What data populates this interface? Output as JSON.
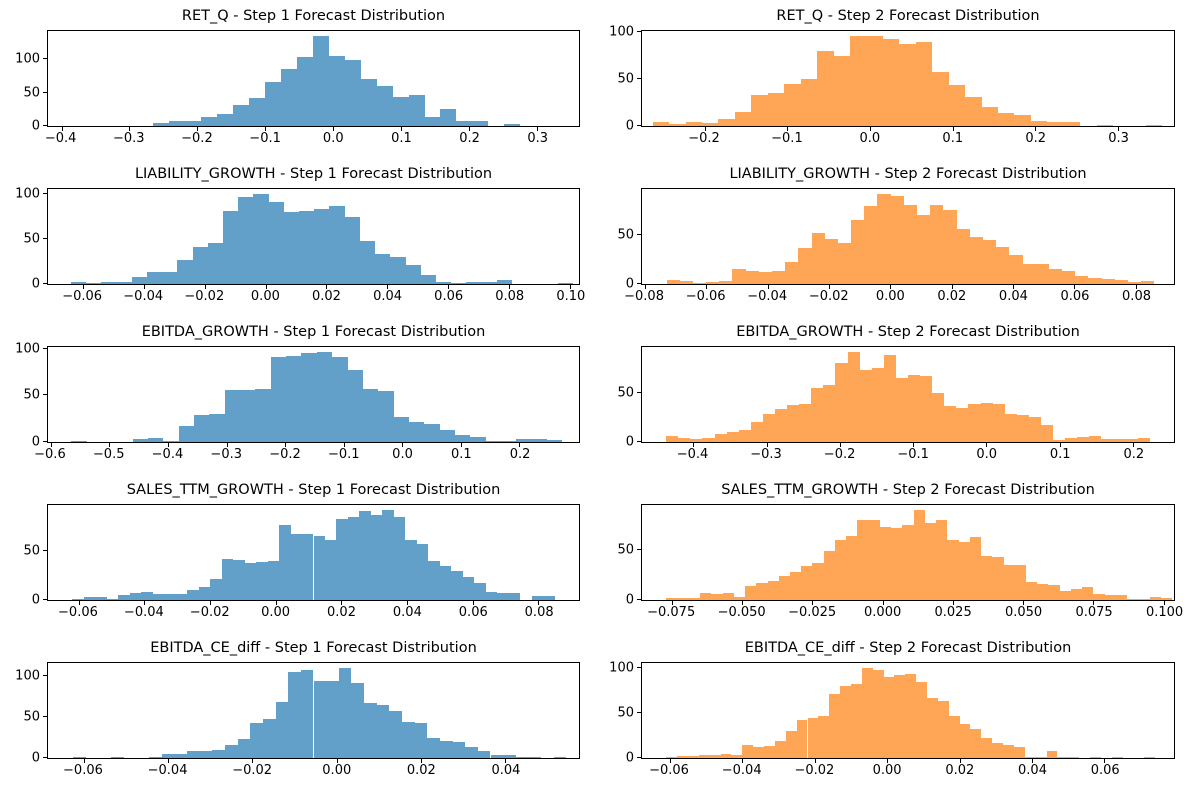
{
  "figure": {
    "kind": "matplotlib-histogram-grid",
    "rows": 5,
    "cols": 2,
    "background": "#ffffff",
    "axis_color": "#000000",
    "step1_color": "#62a0ca",
    "step2_color": "#ffa556"
  },
  "chart_data": [
    {
      "type": "bar",
      "subtype": "histogram",
      "title": "RET_Q - Step 1 Forecast Distribution",
      "series_color": "#62a0ca",
      "bin_start": -0.265,
      "bin_width": 0.0235,
      "counts": [
        4,
        8,
        8,
        13,
        18,
        32,
        42,
        65,
        85,
        103,
        135,
        105,
        98,
        70,
        60,
        43,
        46,
        14,
        25,
        8,
        8,
        0,
        3
      ],
      "xlim": [
        -0.42,
        0.362
      ],
      "ylim": [
        0,
        141.8
      ],
      "xticks": [
        -0.4,
        -0.3,
        -0.2,
        -0.1,
        0.0,
        0.1,
        0.2,
        0.3
      ],
      "xtick_labels": [
        "−0.4",
        "−0.3",
        "−0.2",
        "−0.1",
        "0.0",
        "0.1",
        "0.2",
        "0.3"
      ],
      "yticks": [
        0,
        50,
        100
      ],
      "ytick_labels": [
        "0",
        "50",
        "100"
      ],
      "grid": false,
      "legend": null
    },
    {
      "type": "bar",
      "subtype": "histogram",
      "title": "RET_Q - Step 2 Forecast Distribution",
      "series_color": "#ffa556",
      "bin_start": -0.263,
      "bin_width": 0.0199,
      "counts": [
        4,
        2,
        4,
        3,
        7,
        15,
        33,
        35,
        45,
        50,
        80,
        74,
        96,
        96,
        92,
        87,
        89,
        57,
        44,
        31,
        20,
        14,
        12,
        5,
        4,
        4,
        0,
        1,
        0,
        0,
        1
      ],
      "xlim": [
        -0.276,
        0.368
      ],
      "ylim": [
        0,
        100.8
      ],
      "xticks": [
        -0.2,
        -0.1,
        0.0,
        0.1,
        0.2,
        0.3
      ],
      "xtick_labels": [
        "−0.2",
        "−0.1",
        "0.0",
        "0.1",
        "0.2",
        "0.3"
      ],
      "yticks": [
        0,
        50,
        100
      ],
      "ytick_labels": [
        "0",
        "50",
        "100"
      ],
      "grid": false,
      "legend": null
    },
    {
      "type": "bar",
      "subtype": "histogram",
      "title": "LIABILITY_GROWTH - Step 1 Forecast Distribution",
      "series_color": "#62a0ca",
      "bin_start": -0.064,
      "bin_width": 0.005,
      "counts": [
        2,
        1,
        2,
        2,
        8,
        13,
        13,
        27,
        41,
        46,
        81,
        97,
        101,
        92,
        80,
        81,
        84,
        87,
        75,
        48,
        33,
        30,
        21,
        10,
        2,
        1,
        2,
        2,
        5,
        0,
        0,
        0,
        1
      ],
      "xlim": [
        -0.0715,
        0.103
      ],
      "ylim": [
        0,
        106.1
      ],
      "xticks": [
        -0.06,
        -0.04,
        -0.02,
        0.0,
        0.02,
        0.04,
        0.06,
        0.08,
        0.1
      ],
      "xtick_labels": [
        "−0.06",
        "−0.04",
        "−0.02",
        "0.00",
        "0.02",
        "0.04",
        "0.06",
        "0.08",
        "0.10"
      ],
      "yticks": [
        0,
        50,
        100
      ],
      "ytick_labels": [
        "0",
        "50",
        "100"
      ],
      "grid": false,
      "legend": null
    },
    {
      "type": "bar",
      "subtype": "histogram",
      "title": "LIABILITY_GROWTH - Step 2 Forecast Distribution",
      "series_color": "#ffa556",
      "bin_start": -0.073,
      "bin_width": 0.0043,
      "counts": [
        4,
        3,
        1,
        2,
        3,
        15,
        13,
        12,
        13,
        22,
        37,
        52,
        46,
        42,
        65,
        79,
        92,
        90,
        80,
        70,
        80,
        75,
        56,
        48,
        45,
        38,
        30,
        20,
        20,
        15,
        13,
        8,
        6,
        5,
        4,
        2,
        3
      ],
      "xlim": [
        -0.081,
        0.0925
      ],
      "ylim": [
        0,
        96.6
      ],
      "xticks": [
        -0.08,
        -0.06,
        -0.04,
        -0.02,
        0.0,
        0.02,
        0.04,
        0.06,
        0.08
      ],
      "xtick_labels": [
        "−0.08",
        "−0.06",
        "−0.04",
        "−0.02",
        "0.00",
        "0.02",
        "0.04",
        "0.06",
        "0.08"
      ],
      "yticks": [
        0,
        50
      ],
      "ytick_labels": [
        "0",
        "50"
      ],
      "grid": false,
      "legend": null
    },
    {
      "type": "bar",
      "subtype": "histogram",
      "title": "EBITDA_GROWTH - Step 1 Forecast Distribution",
      "series_color": "#62a0ca",
      "bin_start": -0.565,
      "bin_width": 0.0262,
      "counts": [
        1,
        0,
        0,
        0,
        3,
        4,
        1,
        17,
        29,
        30,
        56,
        56,
        57,
        91,
        92,
        95,
        97,
        91,
        77,
        57,
        55,
        27,
        21,
        19,
        13,
        8,
        5,
        1,
        1,
        3,
        3,
        2
      ],
      "xlim": [
        -0.605,
        0.302
      ],
      "ylim": [
        0,
        101.9
      ],
      "xticks": [
        -0.6,
        -0.5,
        -0.4,
        -0.3,
        -0.2,
        -0.1,
        0.0,
        0.1,
        0.2
      ],
      "xtick_labels": [
        "−0.6",
        "−0.5",
        "−0.4",
        "−0.3",
        "−0.2",
        "−0.1",
        "0.0",
        "0.1",
        "0.2"
      ],
      "yticks": [
        0,
        50,
        100
      ],
      "ytick_labels": [
        "0",
        "50",
        "100"
      ],
      "grid": false,
      "legend": null
    },
    {
      "type": "bar",
      "subtype": "histogram",
      "title": "EBITDA_GROWTH - Step 2 Forecast Distribution",
      "series_color": "#ffa556",
      "bin_start": -0.437,
      "bin_width": 0.0165,
      "counts": [
        6,
        4,
        3,
        4,
        8,
        10,
        12,
        20,
        28,
        34,
        38,
        39,
        55,
        58,
        80,
        92,
        73,
        75,
        88,
        65,
        68,
        67,
        50,
        37,
        35,
        39,
        40,
        39,
        28,
        27,
        25,
        17,
        2,
        4,
        5,
        6,
        3,
        3,
        3,
        4
      ],
      "xlim": [
        -0.47,
        0.256
      ],
      "ylim": [
        0,
        96.6
      ],
      "xticks": [
        -0.4,
        -0.3,
        -0.2,
        -0.1,
        0.0,
        0.1,
        0.2
      ],
      "xtick_labels": [
        "−0.4",
        "−0.3",
        "−0.2",
        "−0.1",
        "0.0",
        "0.1",
        "0.2"
      ],
      "yticks": [
        0,
        50
      ],
      "ytick_labels": [
        "0",
        "50"
      ],
      "grid": false,
      "legend": null
    },
    {
      "type": "bar",
      "subtype": "histogram",
      "title": "SALES_TTM_GROWTH - Step 1 Forecast Distribution",
      "series_color": "#62a0ca",
      "bin_start": -0.062,
      "bin_width": 0.0035,
      "counts": [
        1,
        3,
        3,
        1,
        5,
        7,
        8,
        6,
        6,
        6,
        10,
        13,
        22,
        42,
        41,
        38,
        39,
        40,
        77,
        68,
        68,
        66,
        62,
        83,
        85,
        92,
        87,
        93,
        85,
        62,
        58,
        40,
        35,
        30,
        24,
        18,
        8,
        7,
        7,
        0,
        4,
        4
      ],
      "xlim": [
        -0.0694,
        0.0924
      ],
      "ylim": [
        0,
        97.7
      ],
      "xticks": [
        -0.06,
        -0.04,
        -0.02,
        0.0,
        0.02,
        0.04,
        0.06,
        0.08
      ],
      "xtick_labels": [
        "−0.06",
        "−0.04",
        "−0.02",
        "0.00",
        "0.02",
        "0.04",
        "0.06",
        "0.08"
      ],
      "yticks": [
        0,
        50
      ],
      "ytick_labels": [
        "0",
        "50"
      ],
      "grid": false,
      "legend": null
    },
    {
      "type": "bar",
      "subtype": "histogram",
      "title": "SALES_TTM_GROWTH - Step 2 Forecast Distribution",
      "series_color": "#ffa556",
      "bin_start": -0.077,
      "bin_width": 0.004,
      "counts": [
        2,
        2,
        2,
        7,
        6,
        7,
        3,
        14,
        17,
        19,
        24,
        28,
        34,
        37,
        49,
        60,
        64,
        80,
        80,
        73,
        72,
        75,
        90,
        77,
        80,
        60,
        58,
        63,
        44,
        43,
        35,
        35,
        18,
        16,
        15,
        9,
        11,
        13,
        6,
        5,
        5,
        1,
        1,
        3,
        2
      ],
      "xlim": [
        -0.0857,
        0.1037
      ],
      "ylim": [
        0,
        94.5
      ],
      "xticks": [
        -0.075,
        -0.05,
        -0.025,
        0.0,
        0.025,
        0.05,
        0.075,
        0.1
      ],
      "xtick_labels": [
        "−0.075",
        "−0.050",
        "−0.025",
        "0.000",
        "0.025",
        "0.050",
        "0.075",
        "0.100"
      ],
      "yticks": [
        0,
        50
      ],
      "ytick_labels": [
        "0",
        "50"
      ],
      "grid": false,
      "legend": null
    },
    {
      "type": "bar",
      "subtype": "histogram",
      "title": "EBITDA_CE_diff - Step 1 Forecast Distribution",
      "series_color": "#62a0ca",
      "bin_start": -0.0625,
      "bin_width": 0.003,
      "counts": [
        1,
        0,
        0,
        1,
        0,
        0,
        1,
        5,
        5,
        8,
        9,
        10,
        16,
        23,
        43,
        48,
        68,
        105,
        107,
        94,
        94,
        110,
        91,
        67,
        65,
        57,
        44,
        42,
        24,
        21,
        19,
        13,
        9,
        4,
        4,
        1,
        1,
        0,
        1
      ],
      "xlim": [
        -0.0685,
        0.0575
      ],
      "ylim": [
        0,
        115.5
      ],
      "xticks": [
        -0.06,
        -0.04,
        -0.02,
        0.0,
        0.02,
        0.04
      ],
      "xtick_labels": [
        "−0.06",
        "−0.04",
        "−0.02",
        "0.00",
        "0.02",
        "0.04"
      ],
      "yticks": [
        0,
        50,
        100
      ],
      "ytick_labels": [
        "0",
        "50",
        "100"
      ],
      "grid": false,
      "legend": null
    },
    {
      "type": "bar",
      "subtype": "histogram",
      "title": "EBITDA_CE_diff - Step 2 Forecast Distribution",
      "series_color": "#ffa556",
      "bin_start": -0.061,
      "bin_width": 0.003,
      "counts": [
        1,
        2,
        2,
        3,
        3,
        4,
        3,
        15,
        12,
        13,
        19,
        30,
        43,
        45,
        47,
        72,
        80,
        83,
        101,
        98,
        91,
        93,
        94,
        85,
        67,
        64,
        47,
        38,
        32,
        22,
        17,
        14,
        12,
        1,
        1,
        8,
        1,
        1,
        0,
        1,
        0,
        1,
        0,
        0,
        1
      ],
      "xlim": [
        -0.0677,
        0.0792
      ],
      "ylim": [
        0,
        106.1
      ],
      "xticks": [
        -0.06,
        -0.04,
        -0.02,
        0.0,
        0.02,
        0.04,
        0.06
      ],
      "xtick_labels": [
        "−0.06",
        "−0.04",
        "−0.02",
        "0.00",
        "0.02",
        "0.04",
        "0.06"
      ],
      "yticks": [
        0,
        50,
        100
      ],
      "ytick_labels": [
        "0",
        "50",
        "100"
      ],
      "grid": false,
      "legend": null
    }
  ]
}
